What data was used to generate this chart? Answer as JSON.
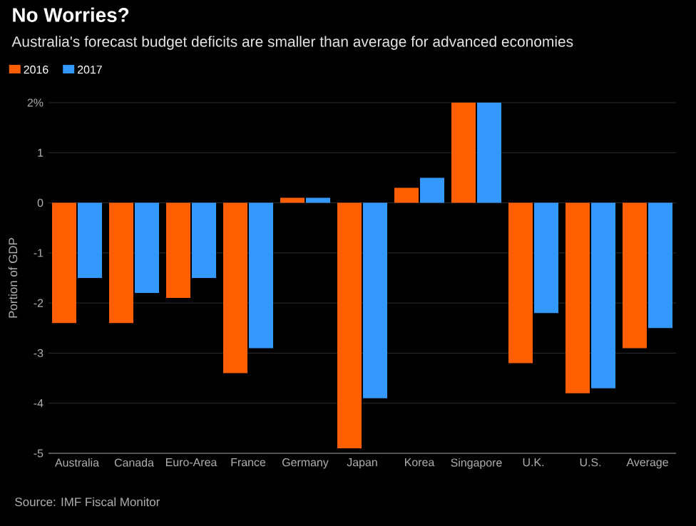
{
  "chart_data": {
    "type": "bar",
    "title": "No Worries?",
    "subtitle": "Australia's forecast budget deficits are smaller than average for advanced economies",
    "ylabel": "Portion of GDP",
    "categories": [
      "Australia",
      "Canada",
      "Euro-Area",
      "France",
      "Germany",
      "Japan",
      "Korea",
      "Singapore",
      "U.K.",
      "U.S.",
      "Average"
    ],
    "series": [
      {
        "name": "2016",
        "color": "#ff5f00",
        "values": [
          -2.4,
          -2.4,
          -1.9,
          -3.4,
          0.1,
          -4.9,
          0.3,
          2,
          -3.2,
          -3.8,
          -2.9
        ]
      },
      {
        "name": "2017",
        "color": "#3399ff",
        "values": [
          -1.5,
          -1.8,
          -1.5,
          -2.9,
          0.1,
          -3.9,
          0.5,
          2,
          -2.2,
          -3.7,
          -2.5
        ]
      }
    ],
    "ylim": [
      -5,
      2
    ],
    "yticks": [
      -5,
      -4,
      -3,
      -2,
      -1,
      0,
      1,
      {
        "value": 2,
        "label": "2%"
      }
    ],
    "grid": "y",
    "legend": "top left",
    "annotations": [
      "Source: IMF Fiscal Monitor"
    ]
  }
}
